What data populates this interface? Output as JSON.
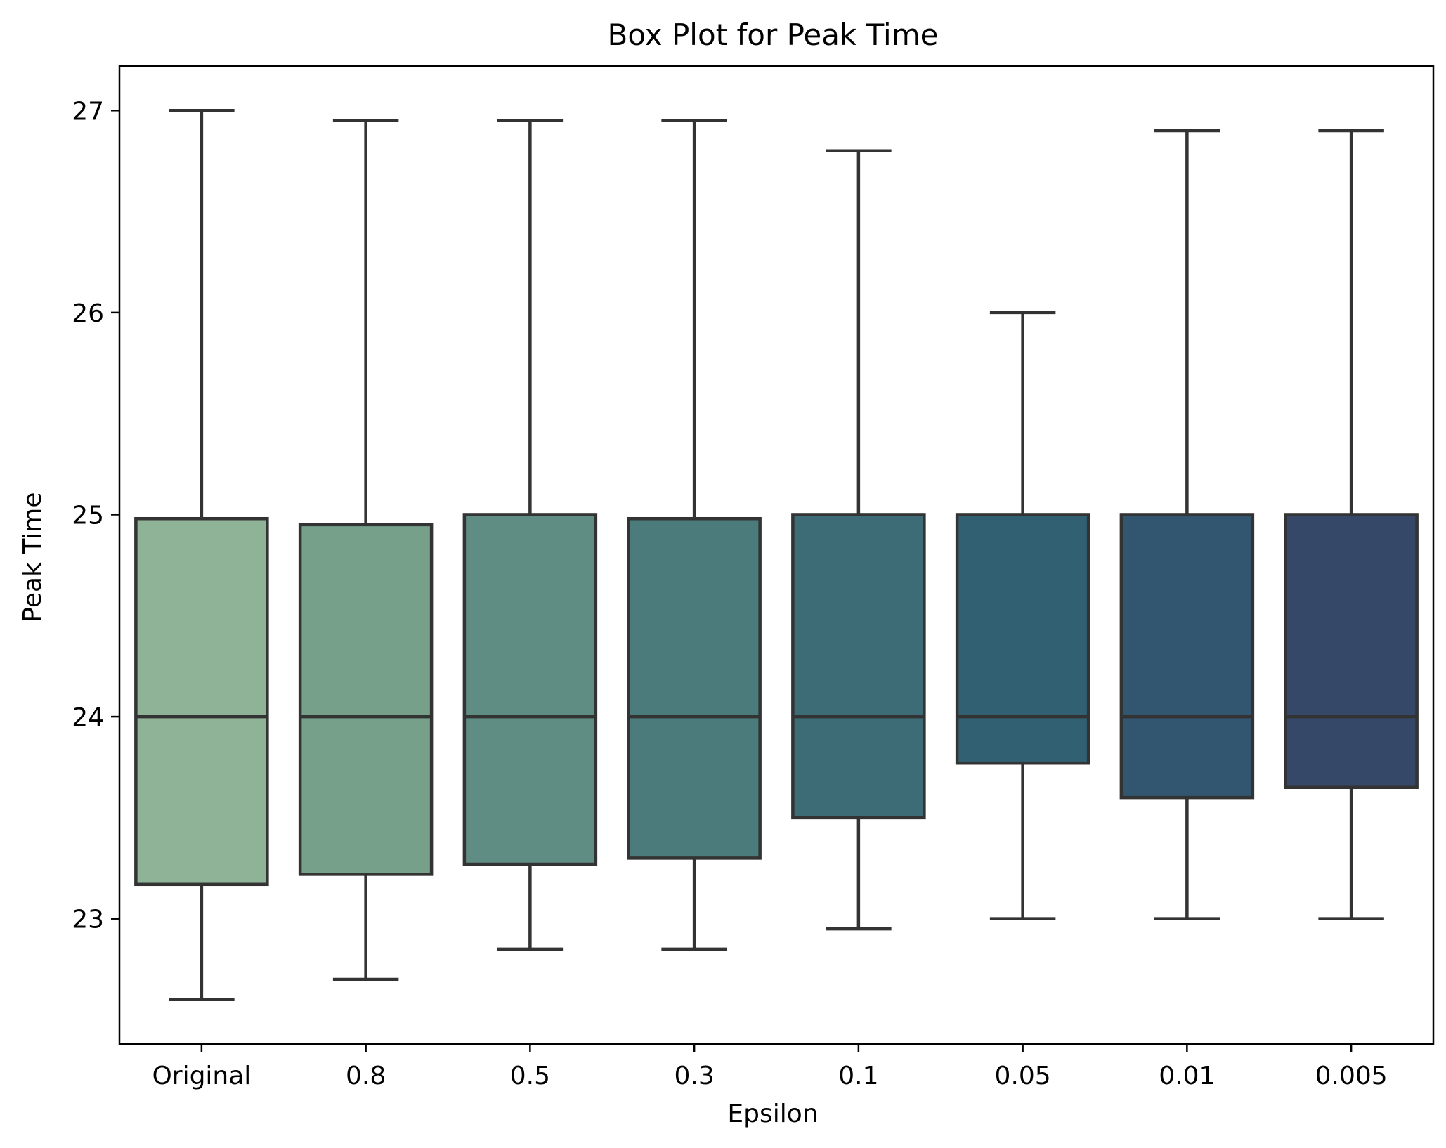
{
  "chart_data": {
    "type": "box",
    "title": "Box Plot for Peak Time",
    "xlabel": "Epsilon",
    "ylabel": "Peak Time",
    "ylim": [
      22.38,
      27.22
    ],
    "yticks": [
      "23",
      "24",
      "25",
      "26",
      "27"
    ],
    "grid": false,
    "categories": [
      "Original",
      "0.8",
      "0.5",
      "0.3",
      "0.1",
      "0.05",
      "0.01",
      "0.005"
    ],
    "boxes": [
      {
        "whisker_low": 22.6,
        "q1": 23.17,
        "median": 24.0,
        "q3": 24.98,
        "whisker_high": 27.0,
        "color": "#8fb396"
      },
      {
        "whisker_low": 22.7,
        "q1": 23.22,
        "median": 24.0,
        "q3": 24.95,
        "whisker_high": 26.95,
        "color": "#76a08a"
      },
      {
        "whisker_low": 22.85,
        "q1": 23.27,
        "median": 24.0,
        "q3": 25.0,
        "whisker_high": 26.95,
        "color": "#5f8d84"
      },
      {
        "whisker_low": 22.85,
        "q1": 23.3,
        "median": 24.0,
        "q3": 24.98,
        "whisker_high": 26.95,
        "color": "#4b7c7b"
      },
      {
        "whisker_low": 22.95,
        "q1": 23.5,
        "median": 24.0,
        "q3": 25.0,
        "whisker_high": 26.8,
        "color": "#3d6b76"
      },
      {
        "whisker_low": 23.0,
        "q1": 23.77,
        "median": 24.0,
        "q3": 25.0,
        "whisker_high": 26.0,
        "color": "#316072"
      },
      {
        "whisker_low": 23.0,
        "q1": 23.6,
        "median": 24.0,
        "q3": 25.0,
        "whisker_high": 26.9,
        "color": "#32566f"
      },
      {
        "whisker_low": 23.0,
        "q1": 23.65,
        "median": 24.0,
        "q3": 25.0,
        "whisker_high": 26.9,
        "color": "#354868"
      }
    ],
    "line_color": "#333333"
  }
}
